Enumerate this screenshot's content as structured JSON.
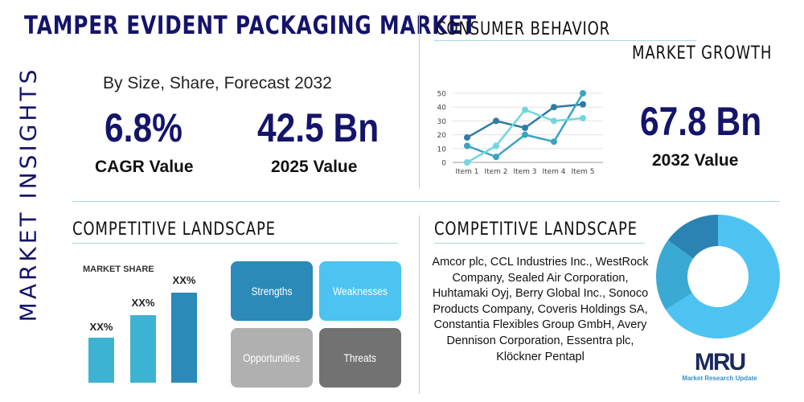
{
  "title": "TAMPER EVIDENT PACKAGING MARKET",
  "side_label": "MARKET INSIGHTS",
  "subtitle": "By Size, Share, Forecast 2032",
  "stats": [
    {
      "value": "6.8%",
      "label": "CAGR Value"
    },
    {
      "value": "42.5 Bn",
      "label": "2025 Value"
    },
    {
      "value": "67.8 Bn",
      "label": "2032 Value"
    }
  ],
  "consumer_heading": "CONSUMER BEHAVIOR",
  "growth_heading": "MARKET GROWTH",
  "chart_data": {
    "type": "line",
    "categories": [
      "Item 1",
      "Item 2",
      "Item 3",
      "Item 4",
      "Item 5"
    ],
    "ylim": [
      0,
      50
    ],
    "yticks": [
      0,
      10,
      20,
      30,
      40,
      50
    ],
    "grid": true,
    "series": [
      {
        "values": [
          18,
          30,
          25,
          40,
          42
        ],
        "color": "#2f7aa6"
      },
      {
        "values": [
          12,
          4,
          20,
          15,
          50
        ],
        "color": "#3aa3c2"
      },
      {
        "values": [
          0,
          12,
          38,
          30,
          32
        ],
        "color": "#72d6de"
      }
    ]
  },
  "competitive_left_heading": "COMPETITIVE LANDSCAPE",
  "market_share": {
    "title": "MARKET SHARE",
    "bars": [
      {
        "label": "XX%",
        "color": "#3db3d4"
      },
      {
        "label": "XX%",
        "color": "#3db3d4"
      },
      {
        "label": "XX%",
        "color": "#2b8ab8"
      }
    ]
  },
  "swot": [
    {
      "label": "Strengths",
      "color": "#2b8ab8"
    },
    {
      "label": "Weaknesses",
      "color": "#4cc3f0"
    },
    {
      "label": "Opportunities",
      "color": "#b0b0b0"
    },
    {
      "label": "Threats",
      "color": "#727272"
    }
  ],
  "competitive_right_heading": "COMPETITIVE LANDSCAPE",
  "companies": "Amcor plc, CCL Industries Inc., WestRock Company, Sealed Air Corporation, Huhtamaki Oyj, Berry Global Inc., Sonoco Products Company, Coveris Holdings SA, Constantia Flexibles Group GmbH, Avery Dennison Corporation, Essentra plc, Klöckner Pentapl",
  "donut": {
    "values": [
      66,
      19,
      15
    ],
    "colors": [
      "#4ec3f2",
      "#3aaad4",
      "#2b83b3"
    ]
  },
  "logo": {
    "mark": "MRU",
    "text": "Market Research Update"
  }
}
